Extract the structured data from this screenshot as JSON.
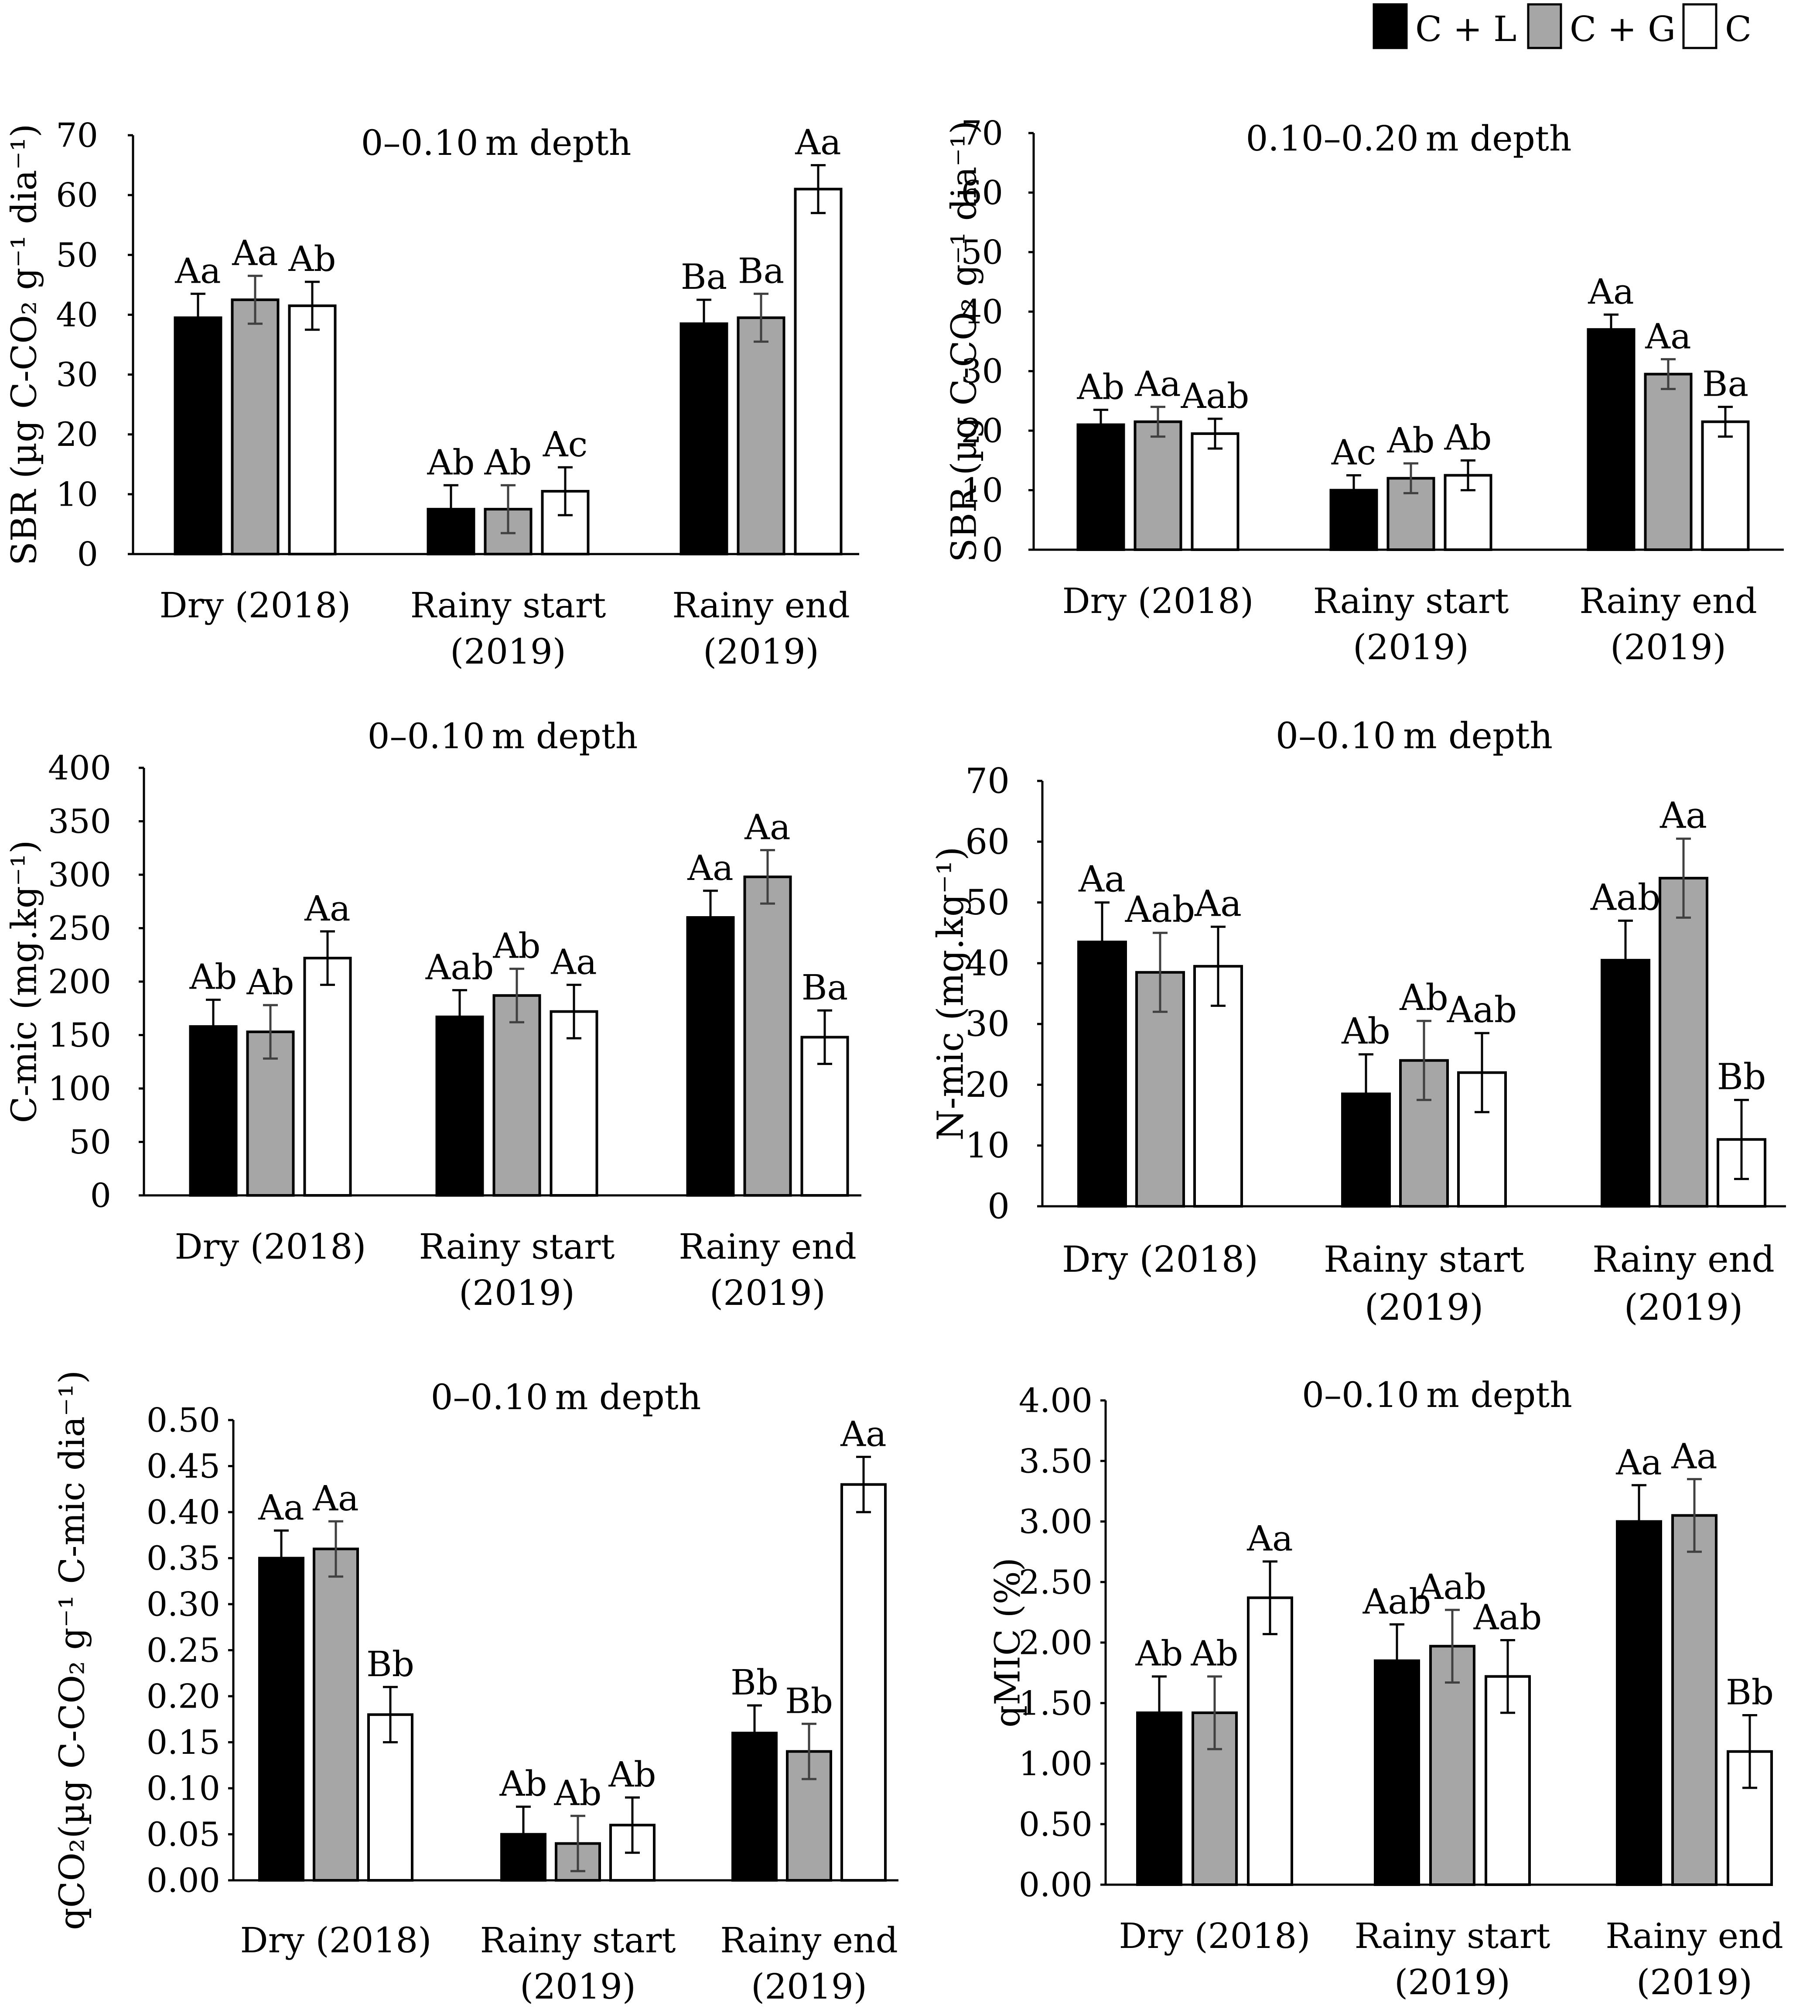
{
  "legend": {
    "items": [
      {
        "label": "C + L",
        "color": "#000000"
      },
      {
        "label": "C + G",
        "color": "#a6a6a6"
      },
      {
        "label": "C",
        "color": "#ffffff"
      }
    ]
  },
  "colors": {
    "border": "#000000",
    "err_dark": "#000000",
    "err_grey": "#404040"
  },
  "chart_data": [
    {
      "type": "bar",
      "title": "0–0.10 m depth",
      "ylabel": "SBR (µg C-CO₂ g⁻¹ dia⁻¹)",
      "ylim": [
        0,
        70
      ],
      "yticks": [
        "0",
        "10",
        "20",
        "30",
        "40",
        "50",
        "60",
        "70"
      ],
      "categories": [
        [
          "Dry (2018)"
        ],
        [
          "Rainy start",
          "(2019)"
        ],
        [
          "Rainy end",
          "(2019)"
        ]
      ],
      "series": [
        {
          "name": "C + L",
          "values": [
            39.5,
            7.5,
            38.5
          ],
          "errors": [
            4,
            4,
            4
          ],
          "labels": [
            "Aa",
            "Ab",
            "Ba"
          ]
        },
        {
          "name": "C + G",
          "values": [
            42.5,
            7.5,
            39.5
          ],
          "errors": [
            4,
            4,
            4
          ],
          "labels": [
            "Aa",
            "Ab",
            "Ba"
          ]
        },
        {
          "name": "C",
          "values": [
            41.5,
            10.5,
            61
          ],
          "errors": [
            4,
            4,
            4
          ],
          "labels": [
            "Ab",
            "Ac",
            "Aa"
          ]
        }
      ]
    },
    {
      "type": "bar",
      "title": "0.10–0.20 m depth",
      "ylabel": "SBR (µg C-CO₂ g⁻¹ dia⁻¹)",
      "ylim": [
        0,
        70
      ],
      "yticks": [
        "0",
        "10",
        "20",
        "30",
        "40",
        "50",
        "60",
        "70"
      ],
      "categories": [
        [
          "Dry (2018)"
        ],
        [
          "Rainy start",
          "(2019)"
        ],
        [
          "Rainy end",
          "(2019)"
        ]
      ],
      "series": [
        {
          "name": "C + L",
          "values": [
            21,
            10,
            37
          ],
          "errors": [
            2.5,
            2.5,
            2.5
          ],
          "labels": [
            "Ab",
            "Ac",
            "Aa"
          ]
        },
        {
          "name": "C + G",
          "values": [
            21.5,
            12,
            29.5
          ],
          "errors": [
            2.5,
            2.5,
            2.5
          ],
          "labels": [
            "Aa",
            "Ab",
            "Aa"
          ]
        },
        {
          "name": "C",
          "values": [
            19.5,
            12.5,
            21.5
          ],
          "errors": [
            2.5,
            2.5,
            2.5
          ],
          "labels": [
            "Aab",
            "Ab",
            "Ba"
          ]
        }
      ]
    },
    {
      "type": "bar",
      "title": "0–0.10 m depth",
      "ylabel": "C-mic (mg.kg⁻¹)",
      "ylim": [
        0,
        400
      ],
      "yticks": [
        "0",
        "50",
        "100",
        "150",
        "200",
        "250",
        "300",
        "350",
        "400"
      ],
      "categories": [
        [
          "Dry (2018)"
        ],
        [
          "Rainy start",
          "(2019)"
        ],
        [
          "Rainy end",
          "(2019)"
        ]
      ],
      "series": [
        {
          "name": "C + L",
          "values": [
            158,
            167,
            260
          ],
          "errors": [
            25,
            25,
            25
          ],
          "labels": [
            "Ab",
            "Aab",
            "Aa"
          ]
        },
        {
          "name": "C + G",
          "values": [
            153,
            187,
            298
          ],
          "errors": [
            25,
            25,
            25
          ],
          "labels": [
            "Ab",
            "Ab",
            "Aa"
          ]
        },
        {
          "name": "C",
          "values": [
            222,
            172,
            148
          ],
          "errors": [
            25,
            25,
            25
          ],
          "labels": [
            "Aa",
            "Aa",
            "Ba"
          ]
        }
      ]
    },
    {
      "type": "bar",
      "title": "0–0.10 m depth",
      "ylabel": "N-mic (mg.kg⁻¹)",
      "ylim": [
        0,
        70
      ],
      "yticks": [
        "0",
        "10",
        "20",
        "30",
        "40",
        "50",
        "60",
        "70"
      ],
      "categories": [
        [
          "Dry (2018)"
        ],
        [
          "Rainy start",
          "(2019)"
        ],
        [
          "Rainy end",
          "(2019)"
        ]
      ],
      "series": [
        {
          "name": "C + L",
          "values": [
            43.5,
            18.5,
            40.5
          ],
          "errors": [
            6.5,
            6.5,
            6.5
          ],
          "labels": [
            "Aa",
            "Ab",
            "Aab"
          ]
        },
        {
          "name": "C + G",
          "values": [
            38.5,
            24,
            54
          ],
          "errors": [
            6.5,
            6.5,
            6.5
          ],
          "labels": [
            "Aab",
            "Ab",
            "Aa"
          ]
        },
        {
          "name": "C",
          "values": [
            39.5,
            22,
            11
          ],
          "errors": [
            6.5,
            6.5,
            6.5
          ],
          "labels": [
            "Aa",
            "Aab",
            "Bb"
          ]
        }
      ]
    },
    {
      "type": "bar",
      "title": "0–0.10 m depth",
      "ylabel": "qCO₂(µg C-CO₂ g⁻¹ C-mic dia⁻¹)",
      "ylim": [
        0,
        0.5
      ],
      "yticks": [
        "0.00",
        "0.05",
        "0.10",
        "0.15",
        "0.20",
        "0.25",
        "0.30",
        "0.35",
        "0.40",
        "0.45",
        "0.50"
      ],
      "categories": [
        [
          "Dry (2018)"
        ],
        [
          "Rainy start",
          "(2019)"
        ],
        [
          "Rainy end",
          "(2019)"
        ]
      ],
      "series": [
        {
          "name": "C + L",
          "values": [
            0.35,
            0.05,
            0.16
          ],
          "errors": [
            0.03,
            0.03,
            0.03
          ],
          "labels": [
            "Aa",
            "Ab",
            "Bb"
          ]
        },
        {
          "name": "C + G",
          "values": [
            0.36,
            0.04,
            0.14
          ],
          "errors": [
            0.03,
            0.03,
            0.03
          ],
          "labels": [
            "Aa",
            "Ab",
            "Bb"
          ]
        },
        {
          "name": "C",
          "values": [
            0.18,
            0.06,
            0.43
          ],
          "errors": [
            0.03,
            0.03,
            0.03
          ],
          "labels": [
            "Bb",
            "Ab",
            "Aa"
          ]
        }
      ]
    },
    {
      "type": "bar",
      "title": "0–0.10 m depth",
      "ylabel": "qMIC (%)",
      "ylim": [
        0,
        4
      ],
      "yticks": [
        "0.00",
        "0.50",
        "1.00",
        "1.50",
        "2.00",
        "2.50",
        "3.00",
        "3.50",
        "4.00"
      ],
      "categories": [
        [
          "Dry (2018)"
        ],
        [
          "Rainy start",
          "(2019)"
        ],
        [
          "Rainy end",
          "(2019)"
        ]
      ],
      "series": [
        {
          "name": "C + L",
          "values": [
            1.42,
            1.85,
            3.0
          ],
          "errors": [
            0.3,
            0.3,
            0.3
          ],
          "labels": [
            "Ab",
            "Aab",
            "Aa"
          ]
        },
        {
          "name": "C + G",
          "values": [
            1.42,
            1.97,
            3.05
          ],
          "errors": [
            0.3,
            0.3,
            0.3
          ],
          "labels": [
            "Ab",
            "Aab",
            "Aa"
          ]
        },
        {
          "name": "C",
          "values": [
            2.37,
            1.72,
            1.1
          ],
          "errors": [
            0.3,
            0.3,
            0.3
          ],
          "labels": [
            "Aa",
            "Aab",
            "Bb"
          ]
        }
      ]
    }
  ]
}
